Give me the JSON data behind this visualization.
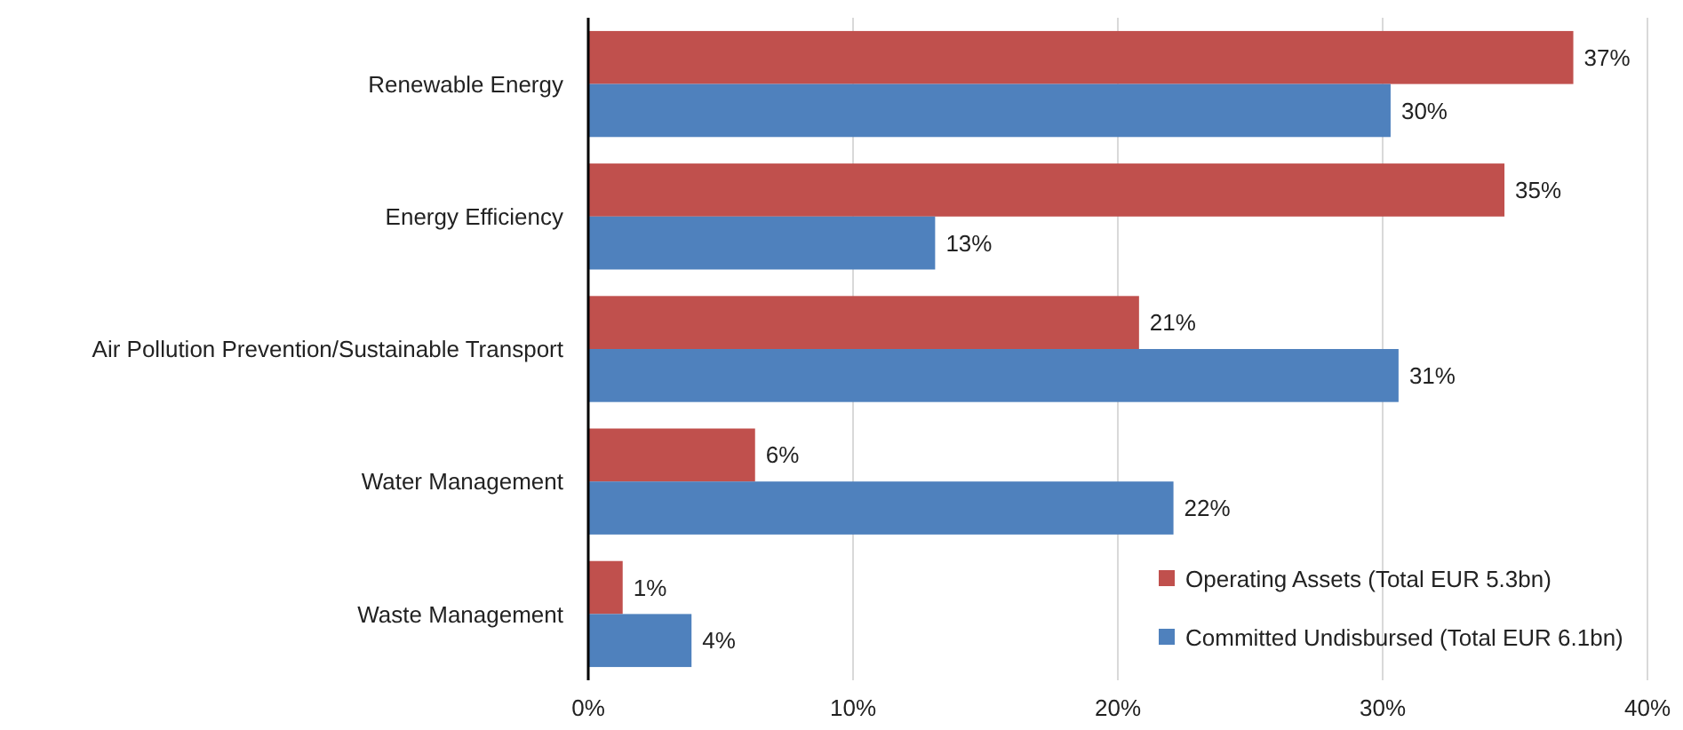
{
  "chart_data": {
    "type": "bar",
    "orientation": "horizontal",
    "categories": [
      "Renewable Energy",
      "Energy Efficiency",
      "Air Pollution Prevention/Sustainable Transport",
      "Water Management",
      "Waste Management"
    ],
    "series": [
      {
        "name": "Operating Assets  (Total EUR 5.3bn)",
        "color": "#c0504d",
        "values": [
          37.2,
          34.6,
          20.8,
          6.3,
          1.3
        ],
        "value_labels": [
          "37%",
          "35%",
          "21%",
          "6%",
          "1%"
        ]
      },
      {
        "name": "Committed Undisbursed (Total EUR 6.1bn)",
        "color": "#4f81bd",
        "values": [
          30.3,
          13.1,
          30.6,
          22.1,
          3.9
        ],
        "value_labels": [
          "30%",
          "13%",
          "31%",
          "22%",
          "4%"
        ]
      }
    ],
    "xlim": [
      0,
      40
    ],
    "xticks": [
      {
        "value": 0,
        "label": "0%"
      },
      {
        "value": 10,
        "label": "10%"
      },
      {
        "value": 20,
        "label": "20%"
      },
      {
        "value": 30,
        "label": "30%"
      },
      {
        "value": 40,
        "label": "40%"
      }
    ],
    "grid": "x",
    "legend": "bottom right"
  }
}
